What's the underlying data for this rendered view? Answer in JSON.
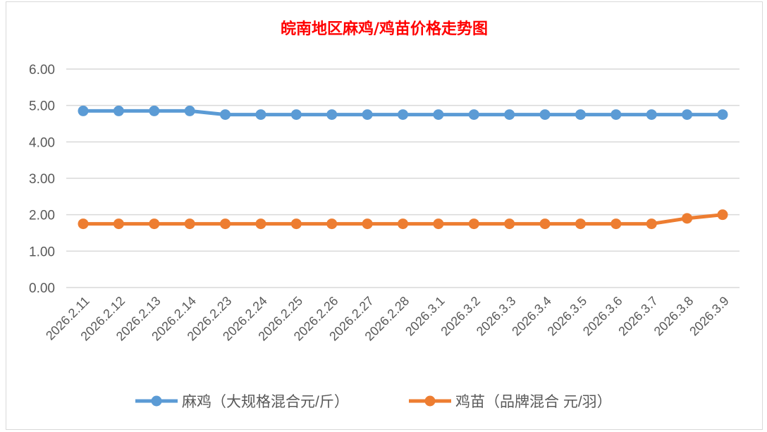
{
  "chart_data": {
    "type": "line",
    "title": "皖南地区麻鸡/鸡苗价格走势图",
    "xlabel": "",
    "ylabel": "",
    "categories": [
      "2026.2.11",
      "2026.2.12",
      "2026.2.13",
      "2026.2.14",
      "2026.2.23",
      "2026.2.24",
      "2026.2.25",
      "2026.2.26",
      "2026.2.27",
      "2026.2.28",
      "2026.3.1",
      "2026.3.2",
      "2026.3.3",
      "2026.3.4",
      "2026.3.5",
      "2026.3.6",
      "2026.3.7",
      "2026.3.8",
      "2026.3.9"
    ],
    "ylim": [
      0,
      6
    ],
    "yticks": [
      "0.00",
      "1.00",
      "2.00",
      "3.00",
      "4.00",
      "5.00",
      "6.00"
    ],
    "grid": true,
    "legend": "bottom",
    "series": [
      {
        "name": "麻鸡（大规格混合元/斤）",
        "color": "#5b9bd5",
        "values": [
          4.85,
          4.85,
          4.85,
          4.85,
          4.75,
          4.75,
          4.75,
          4.75,
          4.75,
          4.75,
          4.75,
          4.75,
          4.75,
          4.75,
          4.75,
          4.75,
          4.75,
          4.75,
          4.75
        ]
      },
      {
        "name": "鸡苗（品牌混合 元/羽）",
        "color": "#ed7d31",
        "values": [
          1.75,
          1.75,
          1.75,
          1.75,
          1.75,
          1.75,
          1.75,
          1.75,
          1.75,
          1.75,
          1.75,
          1.75,
          1.75,
          1.75,
          1.75,
          1.75,
          1.75,
          1.9,
          2.0
        ]
      }
    ]
  }
}
